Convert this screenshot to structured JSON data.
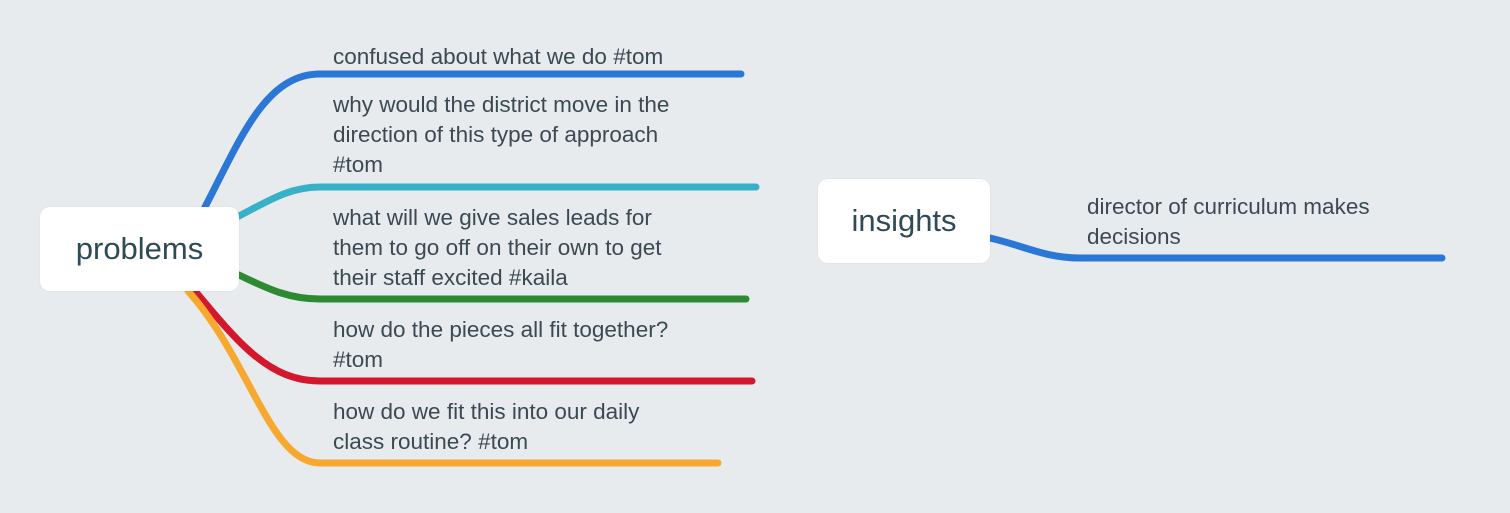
{
  "mindmap": {
    "problems": {
      "title": "problems",
      "branches": [
        {
          "text": "confused about what we do #tom",
          "color": "#2a77d6"
        },
        {
          "text": "why would the district move in the\ndirection of this type of approach\n#tom",
          "color": "#38b0c8"
        },
        {
          "text": "what will we give sales leads for\nthem to go off on their own to get\ntheir staff excited #kaila",
          "color": "#2e8a32"
        },
        {
          "text": "how do the pieces all fit together?\n#tom",
          "color": "#d3172c"
        },
        {
          "text": "how do we fit this into our daily\nclass routine? #tom",
          "color": "#f7a82e"
        }
      ]
    },
    "insights": {
      "title": "insights",
      "branches": [
        {
          "text": "director of curriculum makes\ndecisions",
          "color": "#2a77d6"
        }
      ]
    }
  }
}
